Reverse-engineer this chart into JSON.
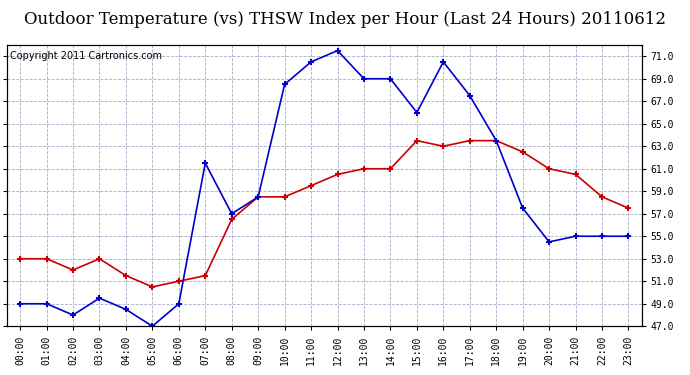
{
  "title": "Outdoor Temperature (vs) THSW Index per Hour (Last 24 Hours) 20110612",
  "copyright": "Copyright 2011 Cartronics.com",
  "hours": [
    "00:00",
    "01:00",
    "02:00",
    "03:00",
    "04:00",
    "05:00",
    "06:00",
    "07:00",
    "08:00",
    "09:00",
    "10:00",
    "11:00",
    "12:00",
    "13:00",
    "14:00",
    "15:00",
    "16:00",
    "17:00",
    "18:00",
    "19:00",
    "20:00",
    "21:00",
    "22:00",
    "23:00"
  ],
  "temp": [
    53.0,
    53.0,
    52.0,
    53.0,
    51.5,
    50.5,
    51.0,
    51.5,
    56.5,
    58.5,
    58.5,
    59.5,
    60.5,
    61.0,
    61.0,
    63.5,
    63.0,
    63.5,
    63.5,
    62.5,
    61.0,
    60.5,
    58.5,
    57.5
  ],
  "thsw": [
    49.0,
    49.0,
    48.0,
    49.5,
    48.5,
    47.0,
    49.0,
    61.5,
    57.0,
    58.5,
    68.5,
    70.5,
    71.5,
    69.0,
    69.0,
    66.0,
    70.5,
    67.5,
    63.5,
    57.5,
    54.5,
    55.0,
    55.0,
    55.0
  ],
  "temp_color": "#cc0000",
  "thsw_color": "#0000cc",
  "ylim": [
    47.0,
    72.0
  ],
  "yticks": [
    47.0,
    49.0,
    51.0,
    53.0,
    55.0,
    57.0,
    59.0,
    61.0,
    63.0,
    65.0,
    67.0,
    69.0,
    71.0
  ],
  "bg_color": "#ffffff",
  "grid_color": "#aaaacc",
  "title_fontsize": 12,
  "copyright_fontsize": 7
}
